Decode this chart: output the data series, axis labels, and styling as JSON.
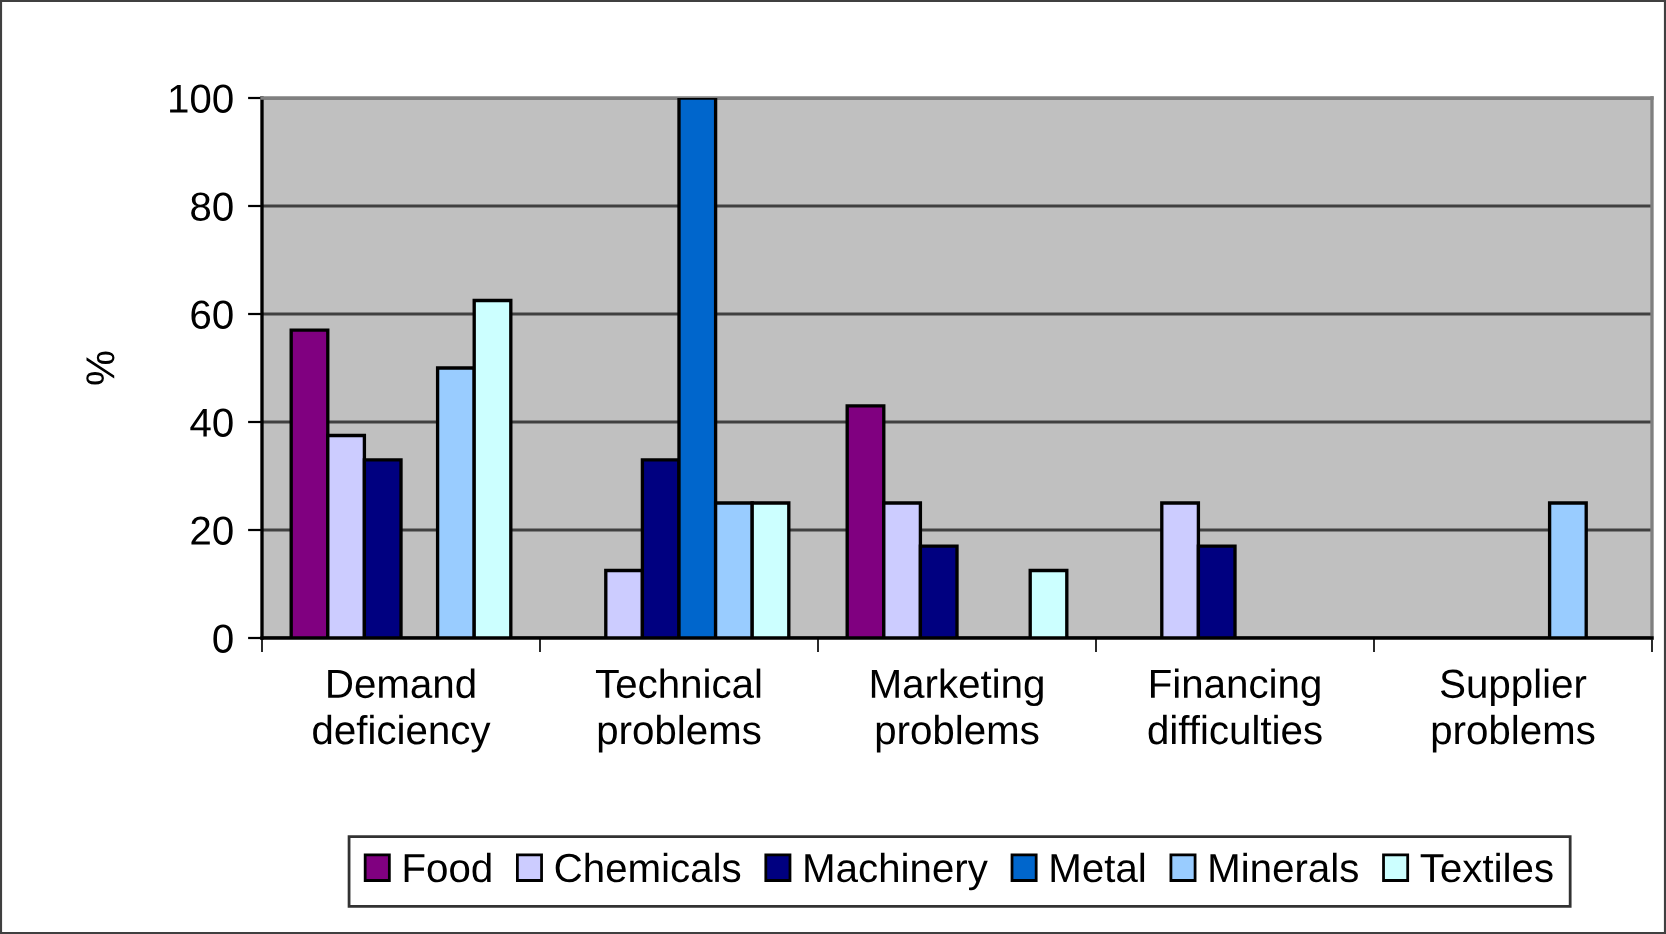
{
  "chart_data": {
    "type": "bar",
    "ylabel": "%",
    "categories": [
      "Demand\ndeficiency",
      "Technical\nproblems",
      "Marketing\nproblems",
      "Financing\ndifficulties",
      "Supplier\nproblems"
    ],
    "series": [
      {
        "name": "Food",
        "color": "#800080",
        "values": [
          57,
          null,
          43,
          null,
          null
        ]
      },
      {
        "name": "Chemicals",
        "color": "#ccccff",
        "values": [
          37.5,
          12.5,
          25,
          25,
          null
        ]
      },
      {
        "name": "Machinery",
        "color": "#000080",
        "values": [
          33,
          33,
          17,
          17,
          null
        ]
      },
      {
        "name": "Metal",
        "color": "#0066cc",
        "values": [
          null,
          100,
          null,
          null,
          null
        ]
      },
      {
        "name": "Minerals",
        "color": "#99ccff",
        "values": [
          50,
          25,
          null,
          null,
          25
        ]
      },
      {
        "name": "Textiles",
        "color": "#ccffff",
        "values": [
          62.5,
          25,
          12.5,
          null,
          null
        ]
      }
    ],
    "ylim": [
      0,
      100
    ],
    "yticks": [
      0,
      20,
      40,
      60,
      80,
      100
    ],
    "grid": "y",
    "legend": "bottom"
  }
}
